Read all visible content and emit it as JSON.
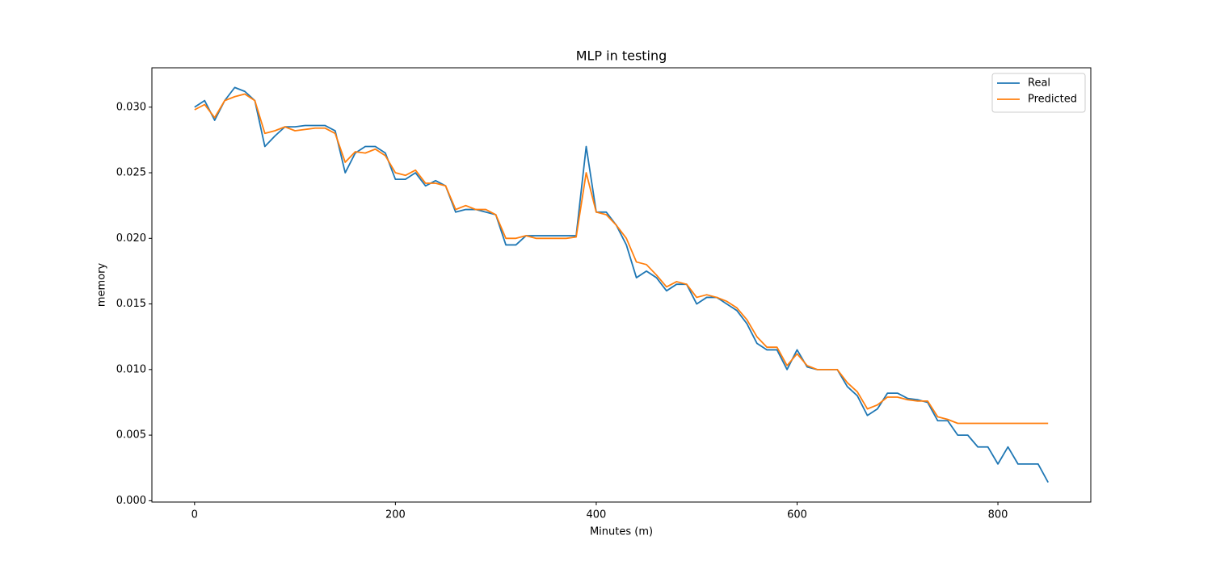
{
  "chart_data": {
    "type": "line",
    "title": "MLP in testing",
    "xlabel": "Minutes (m)",
    "ylabel": "memory",
    "x": [
      0,
      10,
      20,
      30,
      40,
      50,
      60,
      70,
      80,
      90,
      100,
      110,
      120,
      130,
      140,
      150,
      160,
      170,
      180,
      190,
      200,
      210,
      220,
      230,
      240,
      250,
      260,
      270,
      280,
      290,
      300,
      310,
      320,
      330,
      340,
      350,
      360,
      370,
      380,
      390,
      400,
      410,
      420,
      430,
      440,
      450,
      460,
      470,
      480,
      490,
      500,
      510,
      520,
      530,
      540,
      550,
      560,
      570,
      580,
      590,
      600,
      610,
      620,
      630,
      640,
      650,
      660,
      670,
      680,
      690,
      700,
      710,
      720,
      730,
      740,
      750,
      760,
      770,
      780,
      790,
      800,
      810,
      820,
      830,
      840,
      850
    ],
    "series": [
      {
        "name": "Real",
        "color": "#1f77b4",
        "values": [
          0.03,
          0.0305,
          0.029,
          0.0305,
          0.0315,
          0.0312,
          0.0305,
          0.027,
          0.0278,
          0.0285,
          0.0285,
          0.0286,
          0.0286,
          0.0286,
          0.0282,
          0.025,
          0.0265,
          0.027,
          0.027,
          0.0265,
          0.0245,
          0.0245,
          0.025,
          0.024,
          0.0244,
          0.024,
          0.022,
          0.0222,
          0.0222,
          0.022,
          0.0218,
          0.0195,
          0.0195,
          0.0202,
          0.0202,
          0.0202,
          0.0202,
          0.0202,
          0.0202,
          0.027,
          0.022,
          0.022,
          0.021,
          0.0195,
          0.017,
          0.0175,
          0.017,
          0.016,
          0.0165,
          0.0165,
          0.015,
          0.0155,
          0.0155,
          0.015,
          0.0145,
          0.0135,
          0.012,
          0.0115,
          0.0115,
          0.01,
          0.0115,
          0.0102,
          0.01,
          0.01,
          0.01,
          0.0087,
          0.008,
          0.0065,
          0.007,
          0.0082,
          0.0082,
          0.0078,
          0.0077,
          0.0075,
          0.0061,
          0.0061,
          0.005,
          0.005,
          0.0041,
          0.0041,
          0.0028,
          0.0041,
          0.0028,
          0.0028,
          0.0028,
          0.0014
        ]
      },
      {
        "name": "Predicted",
        "color": "#ff7f0e",
        "values": [
          0.0298,
          0.0302,
          0.0292,
          0.0305,
          0.0308,
          0.031,
          0.0305,
          0.028,
          0.0282,
          0.0285,
          0.0282,
          0.0283,
          0.0284,
          0.0284,
          0.028,
          0.0258,
          0.0266,
          0.0265,
          0.0268,
          0.0263,
          0.025,
          0.0248,
          0.0252,
          0.0242,
          0.0242,
          0.024,
          0.0222,
          0.0225,
          0.0222,
          0.0222,
          0.0218,
          0.02,
          0.02,
          0.0202,
          0.02,
          0.02,
          0.02,
          0.02,
          0.0201,
          0.025,
          0.022,
          0.0218,
          0.021,
          0.02,
          0.0182,
          0.018,
          0.0172,
          0.0163,
          0.0167,
          0.0165,
          0.0155,
          0.0157,
          0.0155,
          0.0152,
          0.0147,
          0.0138,
          0.0125,
          0.0117,
          0.0117,
          0.0103,
          0.0112,
          0.0103,
          0.01,
          0.01,
          0.01,
          0.009,
          0.0083,
          0.007,
          0.0073,
          0.0079,
          0.0079,
          0.0077,
          0.0076,
          0.0076,
          0.0064,
          0.0062,
          0.0059,
          0.0059,
          0.0059,
          0.0059,
          0.0059,
          0.0059,
          0.0059,
          0.0059,
          0.0059,
          0.0059
        ]
      }
    ],
    "xlim": [
      -42.5,
      892.5
    ],
    "ylim": [
      -0.0001,
      0.033
    ],
    "xticks": [
      0,
      200,
      400,
      600,
      800
    ],
    "yticks": [
      {
        "value": 0,
        "label": "0.000"
      },
      {
        "value": 0.005,
        "label": "0.005"
      },
      {
        "value": 0.01,
        "label": "0.010"
      },
      {
        "value": 0.015,
        "label": "0.015"
      },
      {
        "value": 0.02,
        "label": "0.020"
      },
      {
        "value": 0.025,
        "label": "0.025"
      },
      {
        "value": 0.03,
        "label": "0.030"
      }
    ],
    "legend": "upper right",
    "grid": false
  }
}
